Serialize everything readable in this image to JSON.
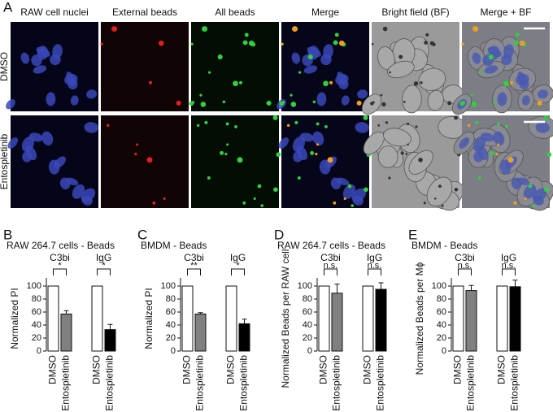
{
  "figure": {
    "panel_label": "A",
    "column_headers": [
      "RAW cell nuclei",
      "External beads",
      "All beads",
      "Merge",
      "Bright field (BF)",
      "Merge + BF"
    ],
    "row_labels": [
      "DMSO",
      "Entospletinib"
    ]
  },
  "chart_data": [
    {
      "type": "bar",
      "panel_label": "B",
      "title": "RAW 264.7 cells - Beads",
      "y_label": "Normalized PI",
      "categories": [
        "DMSO",
        "Entospletinib",
        "DMSO",
        "Entospletinib"
      ],
      "values": [
        100,
        57,
        100,
        33
      ],
      "errors": [
        null,
        5,
        null,
        8
      ],
      "colors": [
        "#ffffff",
        "#808080",
        "#ffffff",
        "#000000"
      ],
      "groups": [
        {
          "label": "C3bi",
          "significance": "*"
        },
        {
          "label": "IgG",
          "significance": "*"
        }
      ],
      "ylim": [
        0,
        120
      ],
      "yticks": [
        0,
        20,
        40,
        60,
        80,
        100
      ]
    },
    {
      "type": "bar",
      "panel_label": "C",
      "title": "BMDM - Beads",
      "y_label": "Normalized PI",
      "categories": [
        "DMSO",
        "Entospletinib",
        "DMSO",
        "Entospletinib"
      ],
      "values": [
        100,
        57,
        100,
        42
      ],
      "errors": [
        null,
        2,
        null,
        7
      ],
      "colors": [
        "#ffffff",
        "#808080",
        "#ffffff",
        "#000000"
      ],
      "groups": [
        {
          "label": "C3bi",
          "significance": "**"
        },
        {
          "label": "IgG",
          "significance": "*"
        }
      ],
      "ylim": [
        0,
        120
      ],
      "yticks": [
        0,
        20,
        40,
        60,
        80,
        100
      ]
    },
    {
      "type": "bar",
      "panel_label": "D",
      "title": "RAW 264.7 cells - Beads",
      "y_label": "Normalized Beads per RAW cell",
      "categories": [
        "DMSO",
        "Entospletinib",
        "DMSO",
        "Entospletinib"
      ],
      "values": [
        100,
        89,
        100,
        95
      ],
      "errors": [
        null,
        14,
        null,
        10
      ],
      "colors": [
        "#ffffff",
        "#808080",
        "#ffffff",
        "#000000"
      ],
      "groups": [
        {
          "label": "C3bi",
          "significance": "n.s."
        },
        {
          "label": "IgG",
          "significance": "n.s."
        }
      ],
      "ylim": [
        0,
        120
      ],
      "yticks": [
        0,
        20,
        40,
        60,
        80,
        100
      ]
    },
    {
      "type": "bar",
      "panel_label": "E",
      "title": "BMDM - Beads",
      "y_label": "Normalized Beads per Mϕ",
      "categories": [
        "DMSO",
        "Entospletinib",
        "DMSO",
        "Entospletinib"
      ],
      "values": [
        100,
        93,
        100,
        99
      ],
      "errors": [
        null,
        8,
        null,
        10
      ],
      "colors": [
        "#ffffff",
        "#808080",
        "#ffffff",
        "#000000"
      ],
      "groups": [
        {
          "label": "C3bi",
          "significance": "n.s."
        },
        {
          "label": "IgG",
          "significance": "n.s."
        }
      ],
      "ylim": [
        0,
        120
      ],
      "yticks": [
        0,
        20,
        40,
        60,
        80,
        100
      ]
    }
  ]
}
